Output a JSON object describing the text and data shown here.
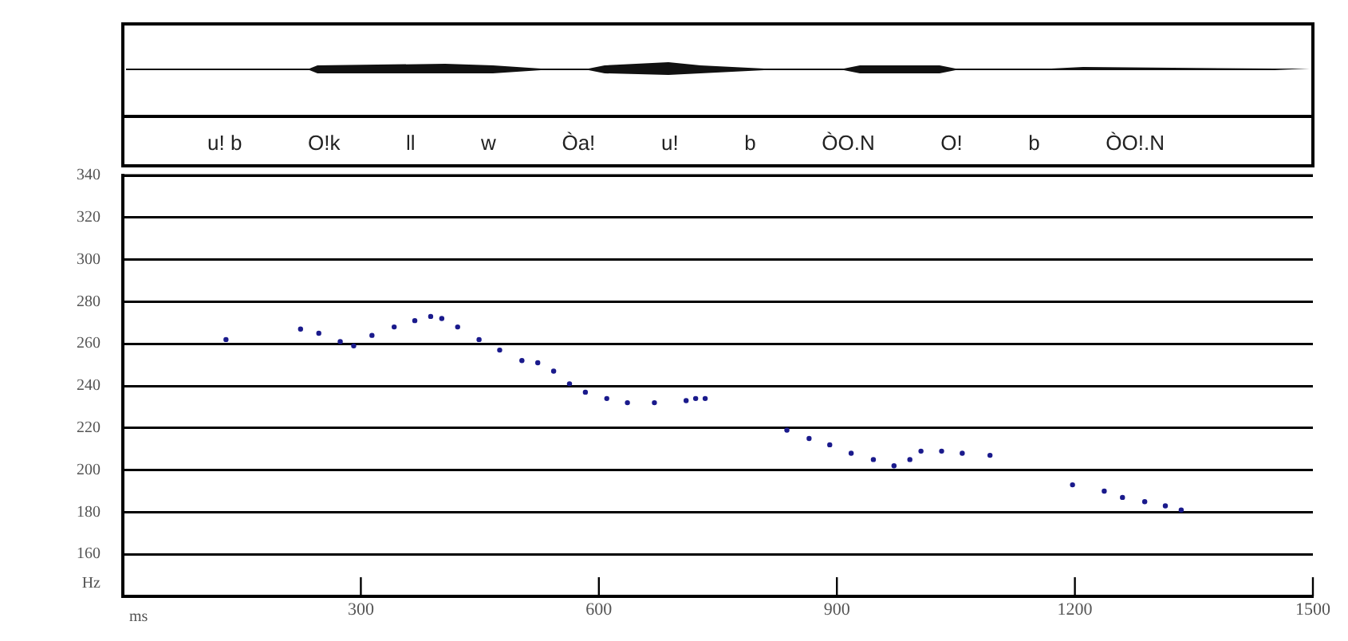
{
  "chart_data": {
    "type": "scatter",
    "xlabel": "ms",
    "ylabel": "Hz",
    "xlim": [
      0,
      1500
    ],
    "xticks": [
      300,
      600,
      900,
      1200,
      1500
    ],
    "ylim": [
      140,
      340
    ],
    "yticks": [
      160,
      180,
      200,
      220,
      240,
      260,
      280,
      300,
      320,
      340
    ],
    "grid": "y",
    "legend": false,
    "marker": "circle",
    "series": [
      {
        "color": "#1a1a8c",
        "x": [
          130,
          224,
          247,
          274,
          291,
          314,
          342,
          368,
          388,
          402,
          422,
          449,
          475,
          503,
          523,
          543,
          563,
          583,
          610,
          636,
          670,
          710,
          722,
          734,
          837,
          865,
          891,
          918,
          946,
          972,
          992,
          1006,
          1032,
          1058,
          1093,
          1197,
          1237,
          1260,
          1288,
          1314,
          1334
        ],
        "values": [
          262,
          267,
          265,
          261,
          259,
          264,
          268,
          271,
          273,
          272,
          268,
          262,
          257,
          252,
          251,
          247,
          241,
          237,
          234,
          232,
          232,
          233,
          234,
          234,
          219,
          215,
          212,
          208,
          205,
          202,
          205,
          209,
          209,
          208,
          207,
          193,
          190,
          187,
          185,
          183,
          181
        ]
      }
    ],
    "annotations": [
      "u! b",
      "O!k",
      "ll",
      "w",
      "Òa!",
      "u!",
      "b",
      "ÒO.N",
      "O!",
      "b",
      "ÒO!.N"
    ]
  }
}
